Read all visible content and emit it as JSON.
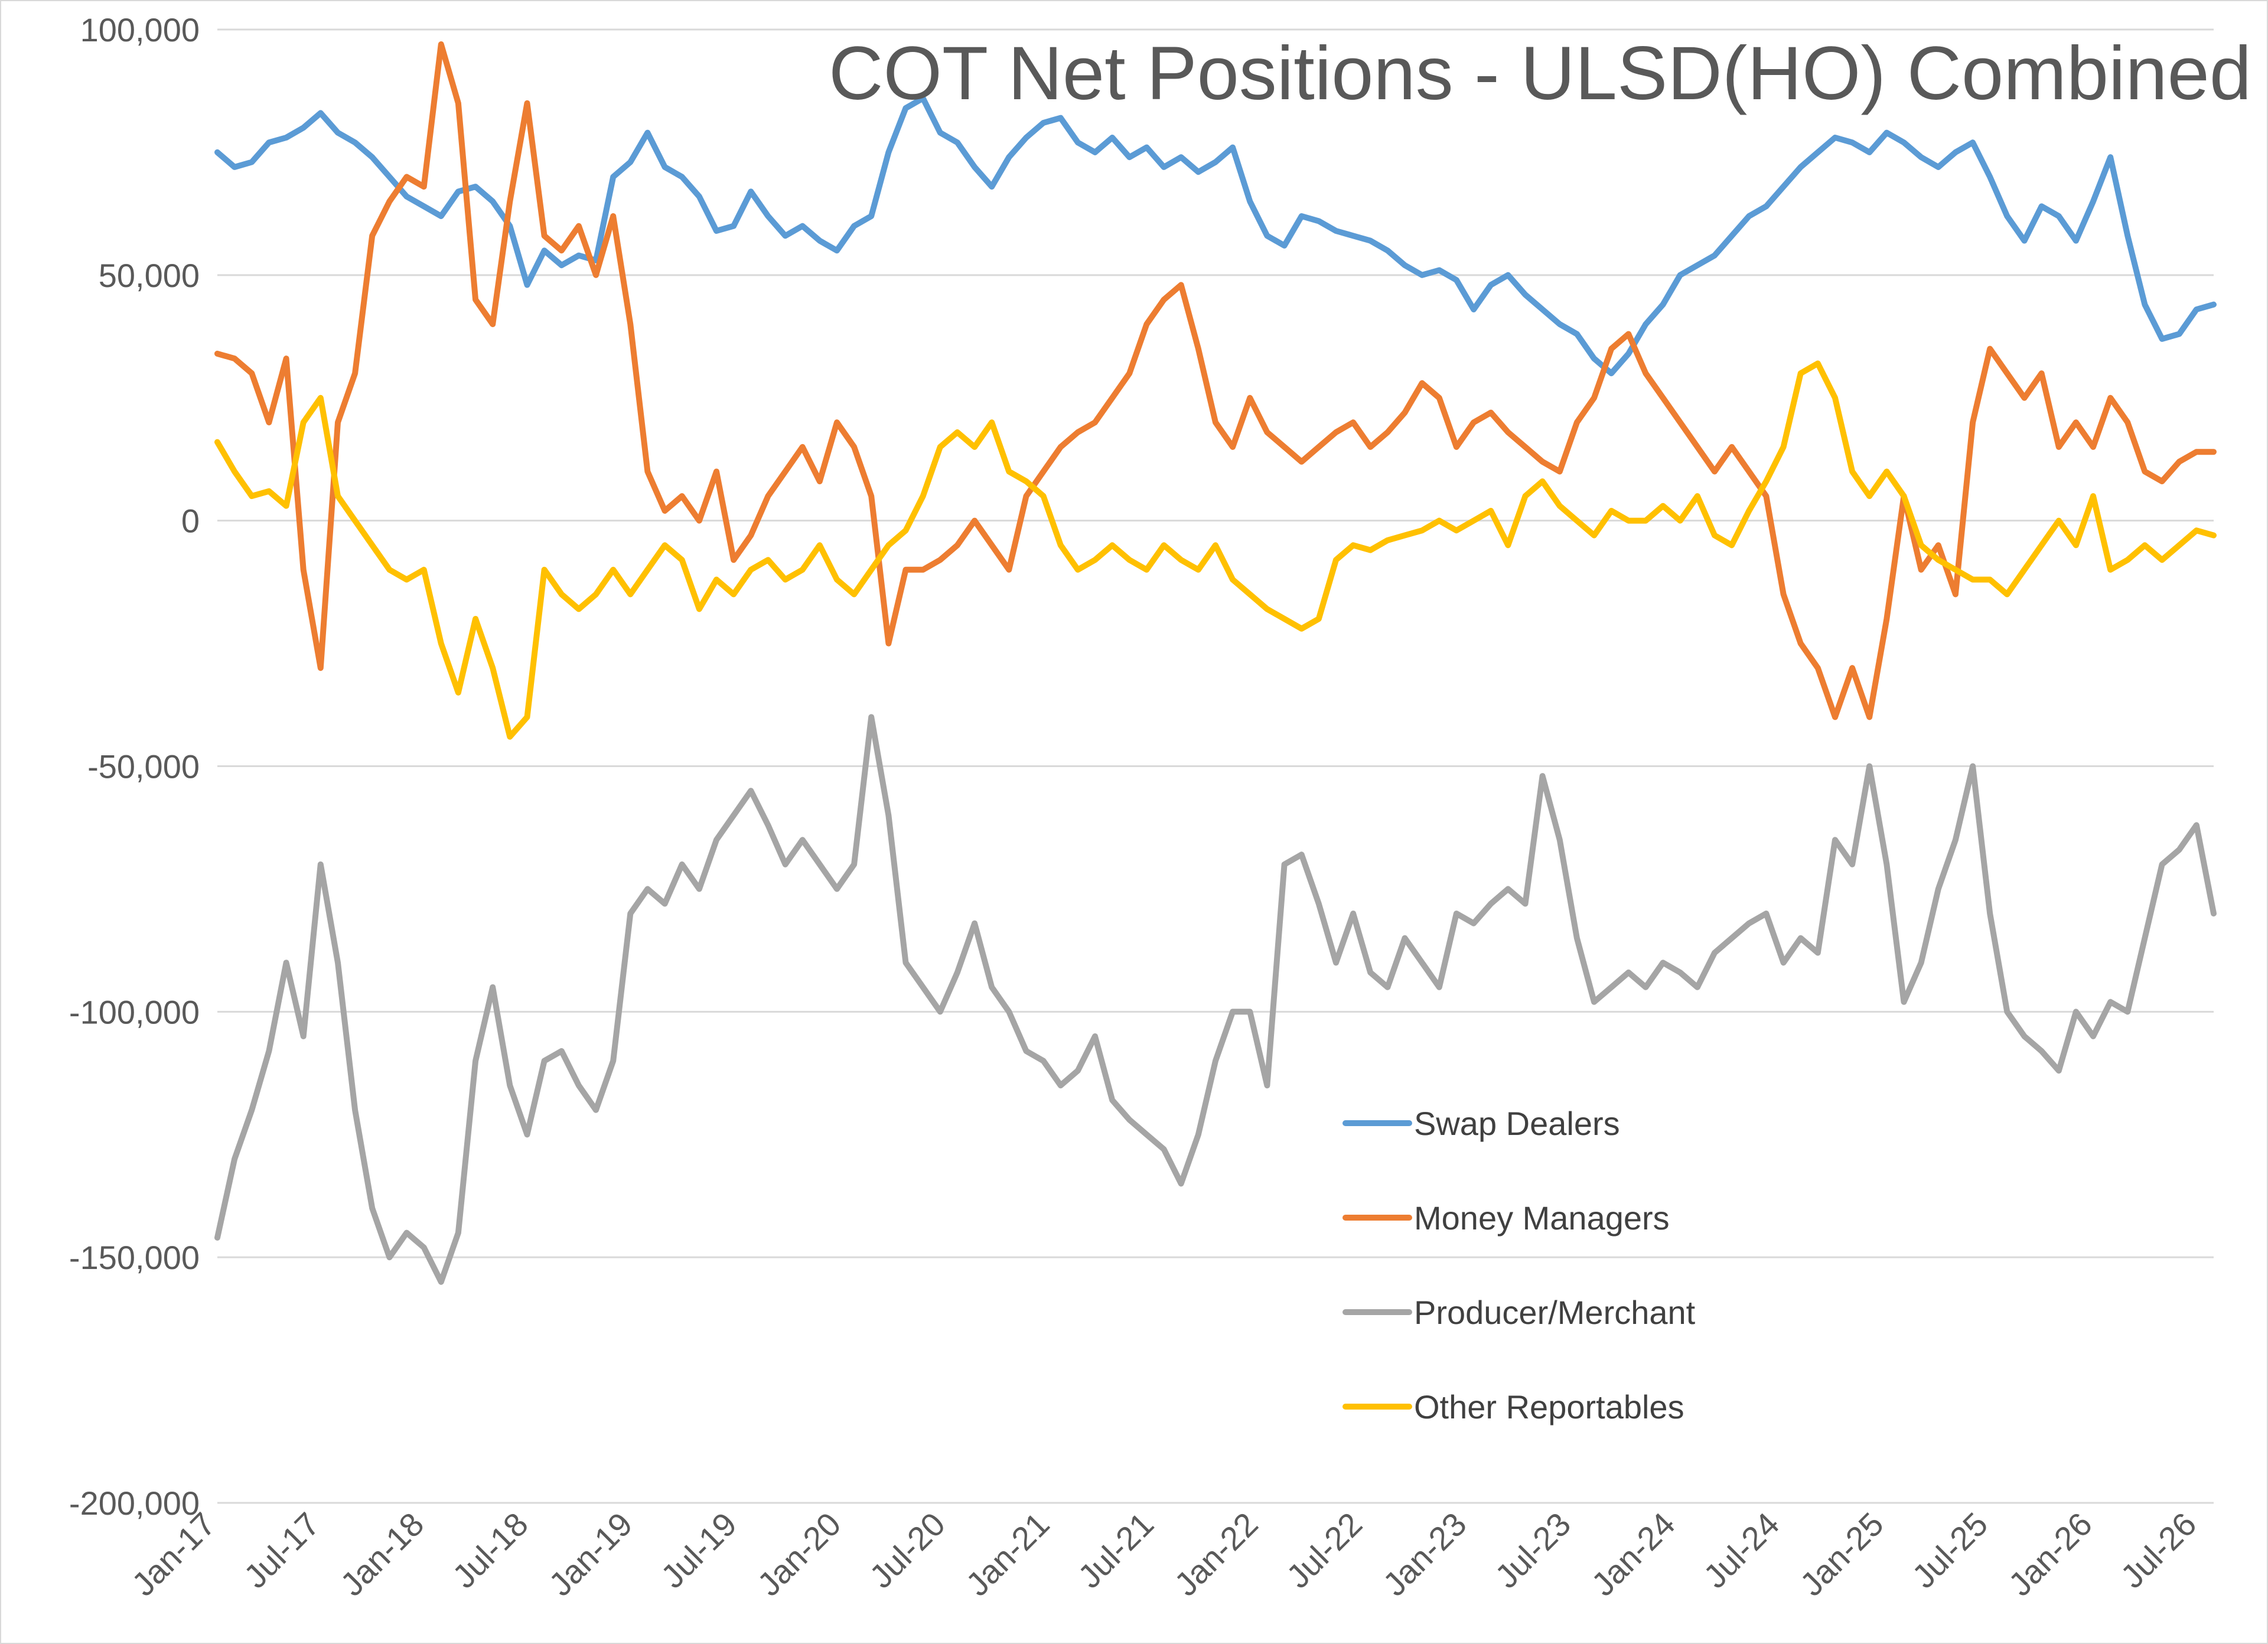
{
  "chart_data": {
    "type": "line",
    "title": "COT Net Positions - ULSD(HO) Combined",
    "xlabel": "",
    "ylabel": "",
    "ylim": [
      -200000,
      100000
    ],
    "yticks": [
      100000,
      50000,
      0,
      -50000,
      -100000,
      -150000,
      -200000
    ],
    "ytick_labels": [
      "100,000",
      "50,000",
      "0",
      "-50,000",
      "-100,000",
      "-150,000",
      "-200,000"
    ],
    "xlim": [
      "2017-01",
      "2026-09"
    ],
    "xtick_labels": [
      "Jan-17",
      "Jul-17",
      "Jan-18",
      "Jul-18",
      "Jan-19",
      "Jul-19",
      "Jan-20",
      "Jul-20",
      "Jan-21",
      "Jul-21",
      "Jan-22",
      "Jul-22",
      "Jan-23",
      "Jul-23",
      "Jan-24",
      "Jul-24",
      "Jan-25",
      "Jul-25",
      "Jan-26",
      "Jul-26"
    ],
    "grid": "horizontal",
    "legend_position": "lower-center-right",
    "series": [
      {
        "name": "Swap Dealers",
        "color": "#5B9BD5",
        "x": [
          "2017-01",
          "2017-02",
          "2017-03",
          "2017-04",
          "2017-05",
          "2017-06",
          "2017-07",
          "2017-08",
          "2017-09",
          "2017-10",
          "2017-11",
          "2017-12",
          "2018-01",
          "2018-02",
          "2018-03",
          "2018-04",
          "2018-05",
          "2018-06",
          "2018-07",
          "2018-08",
          "2018-09",
          "2018-10",
          "2018-11",
          "2018-12",
          "2019-01",
          "2019-02",
          "2019-03",
          "2019-04",
          "2019-05",
          "2019-06",
          "2019-07",
          "2019-08",
          "2019-09",
          "2019-10",
          "2019-11",
          "2019-12",
          "2020-01",
          "2020-02",
          "2020-03",
          "2020-04",
          "2020-05",
          "2020-06",
          "2020-07",
          "2020-08",
          "2020-09",
          "2020-10",
          "2020-11",
          "2020-12",
          "2021-01",
          "2021-02",
          "2021-03",
          "2021-04",
          "2021-05",
          "2021-06",
          "2021-07",
          "2021-08",
          "2021-09",
          "2021-10",
          "2021-11",
          "2021-12",
          "2022-01",
          "2022-02",
          "2022-03",
          "2022-04",
          "2022-05",
          "2022-06",
          "2022-07",
          "2022-08",
          "2022-09",
          "2022-10",
          "2022-11",
          "2022-12",
          "2023-01",
          "2023-02",
          "2023-03",
          "2023-04",
          "2023-05",
          "2023-06",
          "2023-07",
          "2023-08",
          "2023-09",
          "2023-10",
          "2023-11",
          "2023-12",
          "2024-01",
          "2024-02",
          "2024-03",
          "2024-04",
          "2024-05",
          "2024-06",
          "2024-07",
          "2024-08",
          "2024-09",
          "2024-10",
          "2024-11",
          "2024-12",
          "2025-01",
          "2025-02",
          "2025-03",
          "2025-04",
          "2025-05",
          "2025-06",
          "2025-07",
          "2025-08",
          "2025-09",
          "2025-10",
          "2025-11",
          "2025-12",
          "2026-01",
          "2026-02",
          "2026-03",
          "2026-04",
          "2026-05",
          "2026-06",
          "2026-07",
          "2026-08",
          "2026-09"
        ],
        "values": [
          75000,
          72000,
          73000,
          77000,
          78000,
          80000,
          83000,
          79000,
          77000,
          74000,
          70000,
          66000,
          64000,
          62000,
          67000,
          68000,
          65000,
          60000,
          48000,
          55000,
          52000,
          54000,
          53000,
          70000,
          73000,
          79000,
          72000,
          70000,
          66000,
          59000,
          60000,
          67000,
          62000,
          58000,
          60000,
          57000,
          55000,
          60000,
          62000,
          75000,
          84000,
          86000,
          79000,
          77000,
          72000,
          68000,
          74000,
          78000,
          81000,
          82000,
          77000,
          75000,
          78000,
          74000,
          76000,
          72000,
          74000,
          71000,
          73000,
          76000,
          65000,
          58000,
          56000,
          62000,
          61000,
          59000,
          58000,
          57000,
          55000,
          52000,
          50000,
          51000,
          49000,
          43000,
          48000,
          50000,
          46000,
          43000,
          40000,
          38000,
          33000,
          30000,
          34000,
          40000,
          44000,
          50000,
          52000,
          54000,
          58000,
          62000,
          64000,
          68000,
          72000,
          75000,
          78000,
          77000,
          75000,
          79000,
          77000,
          74000,
          72000,
          75000,
          77000,
          70000,
          62000,
          57000,
          64000,
          62000,
          57000,
          65000,
          74000,
          58000,
          44000,
          37000,
          38000,
          43000,
          44000
        ]
      },
      {
        "name": "Money Managers",
        "color": "#ED7D31",
        "x": [
          "2017-01",
          "2017-02",
          "2017-03",
          "2017-04",
          "2017-05",
          "2017-06",
          "2017-07",
          "2017-08",
          "2017-09",
          "2017-10",
          "2017-11",
          "2017-12",
          "2018-01",
          "2018-02",
          "2018-03",
          "2018-04",
          "2018-05",
          "2018-06",
          "2018-07",
          "2018-08",
          "2018-09",
          "2018-10",
          "2018-11",
          "2018-12",
          "2019-01",
          "2019-02",
          "2019-03",
          "2019-04",
          "2019-05",
          "2019-06",
          "2019-07",
          "2019-08",
          "2019-09",
          "2019-10",
          "2019-11",
          "2019-12",
          "2020-01",
          "2020-02",
          "2020-03",
          "2020-04",
          "2020-05",
          "2020-06",
          "2020-07",
          "2020-08",
          "2020-09",
          "2020-10",
          "2020-11",
          "2020-12",
          "2021-01",
          "2021-02",
          "2021-03",
          "2021-04",
          "2021-05",
          "2021-06",
          "2021-07",
          "2021-08",
          "2021-09",
          "2021-10",
          "2021-11",
          "2021-12",
          "2022-01",
          "2022-02",
          "2022-03",
          "2022-04",
          "2022-05",
          "2022-06",
          "2022-07",
          "2022-08",
          "2022-09",
          "2022-10",
          "2022-11",
          "2022-12",
          "2023-01",
          "2023-02",
          "2023-03",
          "2023-04",
          "2023-05",
          "2023-06",
          "2023-07",
          "2023-08",
          "2023-09",
          "2023-10",
          "2023-11",
          "2023-12",
          "2024-01",
          "2024-02",
          "2024-03",
          "2024-04",
          "2024-05",
          "2024-06",
          "2024-07",
          "2024-08",
          "2024-09",
          "2024-10",
          "2024-11",
          "2024-12",
          "2025-01",
          "2025-02",
          "2025-03",
          "2025-04",
          "2025-05",
          "2025-06",
          "2025-07",
          "2025-08",
          "2025-09",
          "2025-10",
          "2025-11",
          "2025-12",
          "2026-01",
          "2026-02",
          "2026-03",
          "2026-04",
          "2026-05",
          "2026-06",
          "2026-07",
          "2026-08",
          "2026-09"
        ],
        "values": [
          34000,
          33000,
          30000,
          20000,
          33000,
          -10000,
          -30000,
          20000,
          30000,
          58000,
          65000,
          70000,
          68000,
          97000,
          85000,
          45000,
          40000,
          65000,
          85000,
          58000,
          55000,
          60000,
          50000,
          62000,
          40000,
          10000,
          2000,
          5000,
          0,
          10000,
          -8000,
          -3000,
          5000,
          10000,
          15000,
          8000,
          20000,
          15000,
          5000,
          -25000,
          -10000,
          -10000,
          -8000,
          -5000,
          0,
          -5000,
          -10000,
          5000,
          10000,
          15000,
          18000,
          20000,
          25000,
          30000,
          40000,
          45000,
          48000,
          35000,
          20000,
          15000,
          25000,
          18000,
          15000,
          12000,
          15000,
          18000,
          20000,
          15000,
          18000,
          22000,
          28000,
          25000,
          15000,
          20000,
          22000,
          18000,
          15000,
          12000,
          10000,
          20000,
          25000,
          35000,
          38000,
          30000,
          25000,
          20000,
          15000,
          10000,
          15000,
          10000,
          5000,
          -15000,
          -25000,
          -30000,
          -40000,
          -30000,
          -40000,
          -20000,
          5000,
          -10000,
          -5000,
          -15000,
          20000,
          35000,
          30000,
          25000,
          30000,
          15000,
          20000,
          15000,
          25000,
          20000,
          10000,
          8000,
          12000,
          14000,
          14000
        ]
      },
      {
        "name": "Producer/Merchant",
        "color": "#A5A5A5",
        "x": [
          "2017-01",
          "2017-02",
          "2017-03",
          "2017-04",
          "2017-05",
          "2017-06",
          "2017-07",
          "2017-08",
          "2017-09",
          "2017-10",
          "2017-11",
          "2017-12",
          "2018-01",
          "2018-02",
          "2018-03",
          "2018-04",
          "2018-05",
          "2018-06",
          "2018-07",
          "2018-08",
          "2018-09",
          "2018-10",
          "2018-11",
          "2018-12",
          "2019-01",
          "2019-02",
          "2019-03",
          "2019-04",
          "2019-05",
          "2019-06",
          "2019-07",
          "2019-08",
          "2019-09",
          "2019-10",
          "2019-11",
          "2019-12",
          "2020-01",
          "2020-02",
          "2020-03",
          "2020-04",
          "2020-05",
          "2020-06",
          "2020-07",
          "2020-08",
          "2020-09",
          "2020-10",
          "2020-11",
          "2020-12",
          "2021-01",
          "2021-02",
          "2021-03",
          "2021-04",
          "2021-05",
          "2021-06",
          "2021-07",
          "2021-08",
          "2021-09",
          "2021-10",
          "2021-11",
          "2021-12",
          "2022-01",
          "2022-02",
          "2022-03",
          "2022-04",
          "2022-05",
          "2022-06",
          "2022-07",
          "2022-08",
          "2022-09",
          "2022-10",
          "2022-11",
          "2022-12",
          "2023-01",
          "2023-02",
          "2023-03",
          "2023-04",
          "2023-05",
          "2023-06",
          "2023-07",
          "2023-08",
          "2023-09",
          "2023-10",
          "2023-11",
          "2023-12",
          "2024-01",
          "2024-02",
          "2024-03",
          "2024-04",
          "2024-05",
          "2024-06",
          "2024-07",
          "2024-08",
          "2024-09",
          "2024-10",
          "2024-11",
          "2024-12",
          "2025-01",
          "2025-02",
          "2025-03",
          "2025-04",
          "2025-05",
          "2025-06",
          "2025-07",
          "2025-08",
          "2025-09",
          "2025-10",
          "2025-11",
          "2025-12",
          "2026-01",
          "2026-02",
          "2026-03",
          "2026-04",
          "2026-05",
          "2026-06",
          "2026-07",
          "2026-08",
          "2026-09"
        ],
        "values": [
          -146000,
          -130000,
          -120000,
          -108000,
          -90000,
          -105000,
          -70000,
          -90000,
          -120000,
          -140000,
          -150000,
          -145000,
          -148000,
          -155000,
          -145000,
          -110000,
          -95000,
          -115000,
          -125000,
          -110000,
          -108000,
          -115000,
          -120000,
          -110000,
          -80000,
          -75000,
          -78000,
          -70000,
          -75000,
          -65000,
          -60000,
          -55000,
          -62000,
          -70000,
          -65000,
          -70000,
          -75000,
          -70000,
          -40000,
          -60000,
          -90000,
          -95000,
          -100000,
          -92000,
          -82000,
          -95000,
          -100000,
          -108000,
          -110000,
          -115000,
          -112000,
          -105000,
          -118000,
          -122000,
          -125000,
          -128000,
          -135000,
          -125000,
          -110000,
          -100000,
          -100000,
          -115000,
          -70000,
          -68000,
          -78000,
          -90000,
          -80000,
          -92000,
          -95000,
          -85000,
          -90000,
          -95000,
          -80000,
          -82000,
          -78000,
          -75000,
          -78000,
          -52000,
          -65000,
          -85000,
          -98000,
          -95000,
          -92000,
          -95000,
          -90000,
          -92000,
          -95000,
          -88000,
          -85000,
          -82000,
          -80000,
          -90000,
          -85000,
          -88000,
          -65000,
          -70000,
          -50000,
          -70000,
          -98000,
          -90000,
          -75000,
          -65000,
          -50000,
          -80000,
          -100000,
          -105000,
          -108000,
          -112000,
          -100000,
          -105000,
          -98000,
          -100000,
          -85000,
          -70000,
          -67000,
          -62000,
          -80000
        ]
      },
      {
        "name": "Other Reportables",
        "color": "#FFC000",
        "x": [
          "2017-01",
          "2017-02",
          "2017-03",
          "2017-04",
          "2017-05",
          "2017-06",
          "2017-07",
          "2017-08",
          "2017-09",
          "2017-10",
          "2017-11",
          "2017-12",
          "2018-01",
          "2018-02",
          "2018-03",
          "2018-04",
          "2018-05",
          "2018-06",
          "2018-07",
          "2018-08",
          "2018-09",
          "2018-10",
          "2018-11",
          "2018-12",
          "2019-01",
          "2019-02",
          "2019-03",
          "2019-04",
          "2019-05",
          "2019-06",
          "2019-07",
          "2019-08",
          "2019-09",
          "2019-10",
          "2019-11",
          "2019-12",
          "2020-01",
          "2020-02",
          "2020-03",
          "2020-04",
          "2020-05",
          "2020-06",
          "2020-07",
          "2020-08",
          "2020-09",
          "2020-10",
          "2020-11",
          "2020-12",
          "2021-01",
          "2021-02",
          "2021-03",
          "2021-04",
          "2021-05",
          "2021-06",
          "2021-07",
          "2021-08",
          "2021-09",
          "2021-10",
          "2021-11",
          "2021-12",
          "2022-01",
          "2022-02",
          "2022-03",
          "2022-04",
          "2022-05",
          "2022-06",
          "2022-07",
          "2022-08",
          "2022-09",
          "2022-10",
          "2022-11",
          "2022-12",
          "2023-01",
          "2023-02",
          "2023-03",
          "2023-04",
          "2023-05",
          "2023-06",
          "2023-07",
          "2023-08",
          "2023-09",
          "2023-10",
          "2023-11",
          "2023-12",
          "2024-01",
          "2024-02",
          "2024-03",
          "2024-04",
          "2024-05",
          "2024-06",
          "2024-07",
          "2024-08",
          "2024-09",
          "2024-10",
          "2024-11",
          "2024-12",
          "2025-01",
          "2025-02",
          "2025-03",
          "2025-04",
          "2025-05",
          "2025-06",
          "2025-07",
          "2025-08",
          "2025-09",
          "2025-10",
          "2025-11",
          "2025-12",
          "2026-01",
          "2026-02",
          "2026-03",
          "2026-04",
          "2026-05",
          "2026-06",
          "2026-07",
          "2026-08",
          "2026-09"
        ],
        "values": [
          16000,
          10000,
          5000,
          6000,
          3000,
          20000,
          25000,
          5000,
          0,
          -5000,
          -10000,
          -12000,
          -10000,
          -25000,
          -35000,
          -20000,
          -30000,
          -44000,
          -40000,
          -10000,
          -15000,
          -18000,
          -15000,
          -10000,
          -15000,
          -10000,
          -5000,
          -8000,
          -18000,
          -12000,
          -15000,
          -10000,
          -8000,
          -12000,
          -10000,
          -5000,
          -12000,
          -15000,
          -10000,
          -5000,
          -2000,
          5000,
          15000,
          18000,
          15000,
          20000,
          10000,
          8000,
          5000,
          -5000,
          -10000,
          -8000,
          -5000,
          -8000,
          -10000,
          -5000,
          -8000,
          -10000,
          -5000,
          -12000,
          -15000,
          -18000,
          -20000,
          -22000,
          -20000,
          -8000,
          -5000,
          -6000,
          -4000,
          -3000,
          -2000,
          0,
          -2000,
          0,
          2000,
          -5000,
          5000,
          8000,
          3000,
          0,
          -3000,
          2000,
          0,
          0,
          3000,
          0,
          5000,
          -3000,
          -5000,
          2000,
          8000,
          15000,
          30000,
          32000,
          25000,
          10000,
          5000,
          10000,
          5000,
          -5000,
          -8000,
          -10000,
          -12000,
          -12000,
          -15000,
          -10000,
          -5000,
          0,
          -5000,
          5000,
          -10000,
          -8000,
          -5000,
          -8000,
          -5000,
          -2000,
          -3000
        ]
      }
    ]
  }
}
